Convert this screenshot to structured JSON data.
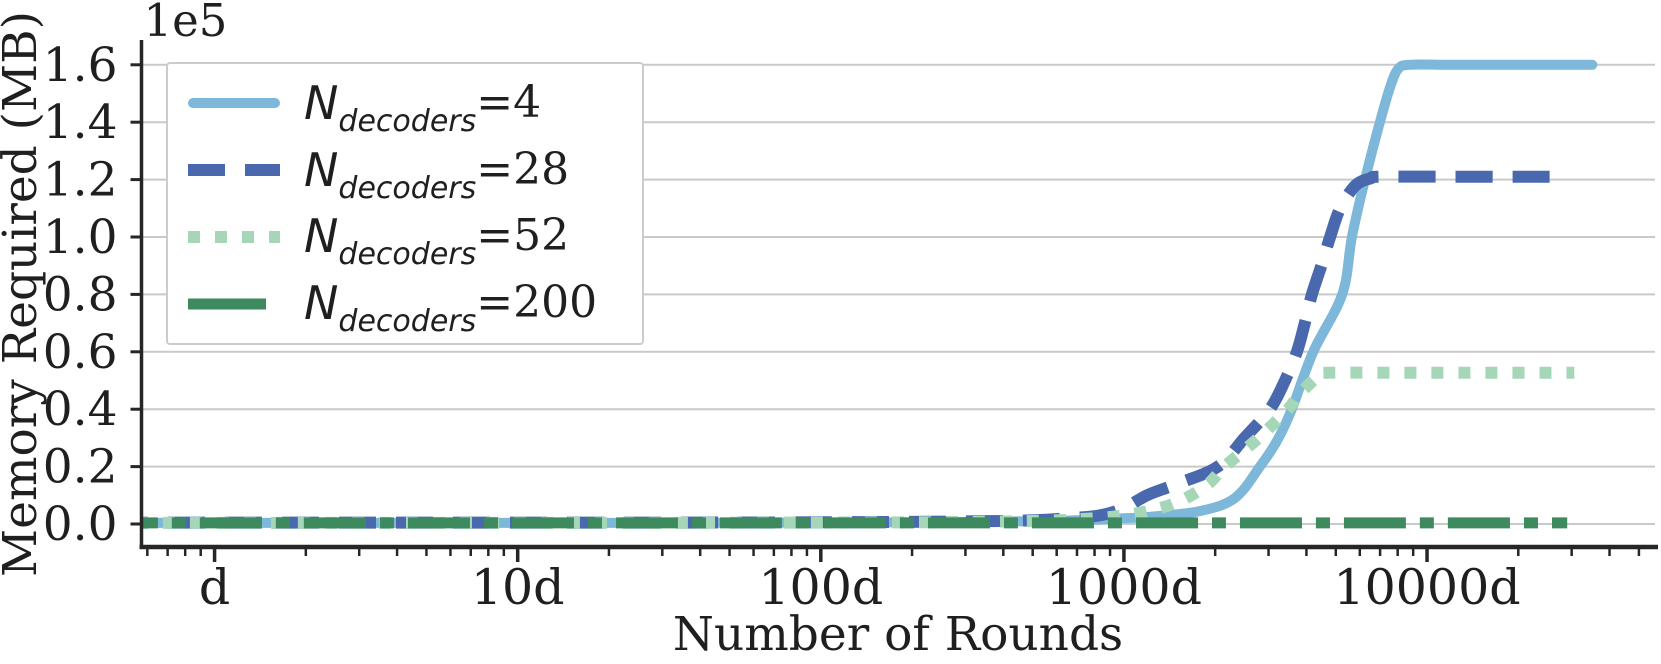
{
  "chart_data": {
    "type": "line",
    "title": "",
    "xlabel": "Number of Rounds",
    "ylabel": "Memory Required (MB)",
    "y_offset_text": "1e5",
    "x_scale": "log",
    "grid": "horizontal-only",
    "legend_position": "upper-left",
    "x_range_d": [
      0.574,
      56500
    ],
    "y_range_1e5": [
      -0.0801,
      1.6794
    ],
    "x_ticks": [
      {
        "v": 1,
        "label": "d"
      },
      {
        "v": 10,
        "label": "10d"
      },
      {
        "v": 100,
        "label": "100d"
      },
      {
        "v": 1000,
        "label": "1000d"
      },
      {
        "v": 10000,
        "label": "10000d"
      }
    ],
    "y_ticks": [
      {
        "v": 0.0,
        "label": "0.0"
      },
      {
        "v": 0.2,
        "label": "0.2"
      },
      {
        "v": 0.4,
        "label": "0.4"
      },
      {
        "v": 0.6,
        "label": "0.6"
      },
      {
        "v": 0.8,
        "label": "0.8"
      },
      {
        "v": 1.0,
        "label": "1.0"
      },
      {
        "v": 1.2,
        "label": "1.2"
      },
      {
        "v": 1.4,
        "label": "1.4"
      },
      {
        "v": 1.6,
        "label": "1.6"
      }
    ],
    "colors": {
      "grid": "#c9c9c9",
      "spine": "#262626",
      "text": "#1f1f1f"
    },
    "series": [
      {
        "id": "N4",
        "label": "N_decoders=4",
        "base": "N",
        "sub": "decoders",
        "eq": "=4",
        "color": "#7db7d9",
        "style": "solid",
        "width": 10,
        "dash": null,
        "plateau_1e5": 1.6,
        "points": [
          [
            0.55,
            0.004
          ],
          [
            5,
            0.004
          ],
          [
            30,
            0.004
          ],
          [
            100,
            0.005
          ],
          [
            300,
            0.007
          ],
          [
            500,
            0.01
          ],
          [
            700,
            0.013
          ],
          [
            1000,
            0.02
          ],
          [
            1219,
            0.025
          ],
          [
            1778,
            0.045
          ],
          [
            2320,
            0.09
          ],
          [
            2810,
            0.2
          ],
          [
            3200,
            0.29
          ],
          [
            3580,
            0.4
          ],
          [
            4210,
            0.6
          ],
          [
            5250,
            0.8
          ],
          [
            5650,
            1.0
          ],
          [
            6240,
            1.2
          ],
          [
            6990,
            1.4
          ],
          [
            7540,
            1.52
          ],
          [
            8020,
            1.585
          ],
          [
            8770,
            1.6
          ],
          [
            12000,
            1.6
          ],
          [
            20000,
            1.6
          ],
          [
            35100,
            1.6
          ]
        ]
      },
      {
        "id": "N28",
        "label": "N_decoders=28",
        "base": "N",
        "sub": "decoders",
        "eq": "=28",
        "color": "#4a68ae",
        "style": "dashed",
        "width": 12,
        "dash": [
          37,
          20
        ],
        "plateau_1e5": 1.21,
        "points": [
          [
            0.55,
            0.005
          ],
          [
            5,
            0.005
          ],
          [
            30,
            0.005
          ],
          [
            100,
            0.006
          ],
          [
            300,
            0.009
          ],
          [
            500,
            0.013
          ],
          [
            650,
            0.02
          ],
          [
            832,
            0.03
          ],
          [
            1000,
            0.055
          ],
          [
            1192,
            0.1
          ],
          [
            1500,
            0.14
          ],
          [
            2042,
            0.2
          ],
          [
            2500,
            0.3
          ],
          [
            3030,
            0.4
          ],
          [
            3400,
            0.5
          ],
          [
            3720,
            0.6
          ],
          [
            3950,
            0.7
          ],
          [
            4170,
            0.8
          ],
          [
            4480,
            0.9
          ],
          [
            4790,
            1.0
          ],
          [
            5170,
            1.1
          ],
          [
            5810,
            1.18
          ],
          [
            6540,
            1.205
          ],
          [
            7000,
            1.21
          ],
          [
            12000,
            1.21
          ],
          [
            20000,
            1.21
          ],
          [
            29000,
            1.21
          ]
        ]
      },
      {
        "id": "N52",
        "label": "N_decoders=52",
        "base": "N",
        "sub": "decoders",
        "eq": "=52",
        "color": "#a5d6b8",
        "style": "dotted",
        "width": 12,
        "dash": [
          12,
          15
        ],
        "plateau_1e5": 0.53,
        "points": [
          [
            0.55,
            0.004
          ],
          [
            5,
            0.004
          ],
          [
            30,
            0.004
          ],
          [
            100,
            0.005
          ],
          [
            300,
            0.007
          ],
          [
            500,
            0.011
          ],
          [
            700,
            0.016
          ],
          [
            1000,
            0.03
          ],
          [
            1316,
            0.055
          ],
          [
            1600,
            0.09
          ],
          [
            1900,
            0.14
          ],
          [
            2150,
            0.2
          ],
          [
            2780,
            0.3
          ],
          [
            3480,
            0.4
          ],
          [
            3770,
            0.45
          ],
          [
            4210,
            0.5
          ],
          [
            4430,
            0.52
          ],
          [
            4680,
            0.527
          ],
          [
            8000,
            0.527
          ],
          [
            15000,
            0.527
          ],
          [
            30600,
            0.527
          ]
        ]
      },
      {
        "id": "N200",
        "label": "N_decoders=200",
        "base": "N",
        "sub": "decoders",
        "eq": "=200",
        "color": "#3d8a5f",
        "style": "dashdot",
        "width": 11,
        "dash": [
          62,
          14,
          14,
          14
        ],
        "plateau_1e5": 0.0,
        "points": [
          [
            0.55,
            0.004
          ],
          [
            10,
            0.004
          ],
          [
            100,
            0.004
          ],
          [
            1000,
            0.004
          ],
          [
            5000,
            0.004
          ],
          [
            10000,
            0.004
          ],
          [
            20000,
            0.004
          ],
          [
            29000,
            0.004
          ]
        ]
      }
    ]
  }
}
